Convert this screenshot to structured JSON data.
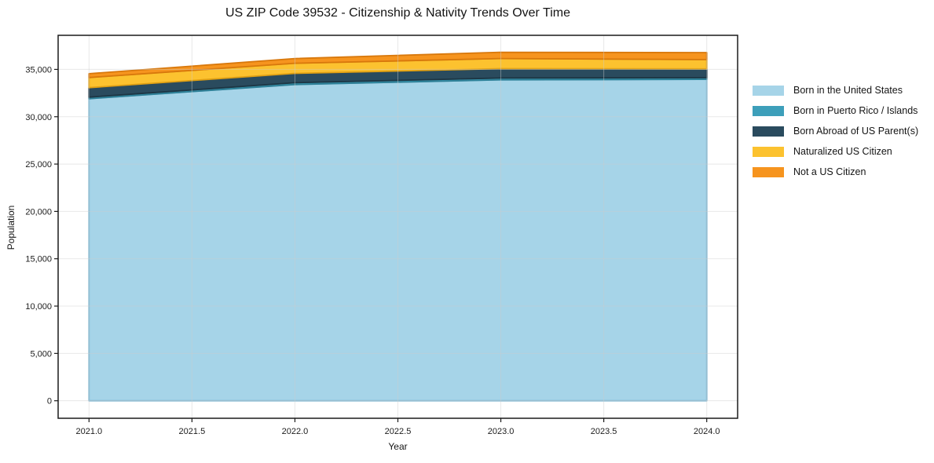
{
  "chart_data": {
    "type": "area",
    "stacked": true,
    "title": "US ZIP Code 39532 - Citizenship & Nativity Trends Over Time",
    "xlabel": "Year",
    "ylabel": "Population",
    "x": [
      2021,
      2022,
      2023,
      2024
    ],
    "series": [
      {
        "name": "Born in the United States",
        "color": "#a6d4e8",
        "edge": "#79b6d4",
        "values": [
          31900,
          33400,
          33900,
          33950
        ]
      },
      {
        "name": "Born in Puerto Rico / Islands",
        "color": "#3d9fba",
        "edge": "#2d7f96",
        "values": [
          170,
          190,
          190,
          170
        ]
      },
      {
        "name": "Born Abroad of US Parent(s)",
        "color": "#2a4b5e",
        "edge": "#1d3644",
        "values": [
          1000,
          990,
          990,
          930
        ]
      },
      {
        "name": "Naturalized US Citizen",
        "color": "#fcc22f",
        "edge": "#e0a013",
        "values": [
          1070,
          1070,
          1070,
          990
        ]
      },
      {
        "name": "Not a US Citizen",
        "color": "#f6941e",
        "edge": "#d8780c",
        "values": [
          410,
          500,
          660,
          740
        ]
      }
    ],
    "totals": [
      34550,
      36150,
      36810,
      36780
    ],
    "xticks": [
      2021.0,
      2021.5,
      2022.0,
      2022.5,
      2023.0,
      2023.5,
      2024.0
    ],
    "yticks": [
      0,
      5000,
      10000,
      15000,
      20000,
      25000,
      30000,
      35000
    ],
    "xlim": [
      2020.85,
      2024.15
    ],
    "ylim": [
      -1850,
      38600
    ],
    "grid": true,
    "legend_position": "right-outside",
    "background_color": "#ffffff",
    "spine_color": "#1a1a1a",
    "grid_color": "rgba(203,203,203,0.45)"
  }
}
